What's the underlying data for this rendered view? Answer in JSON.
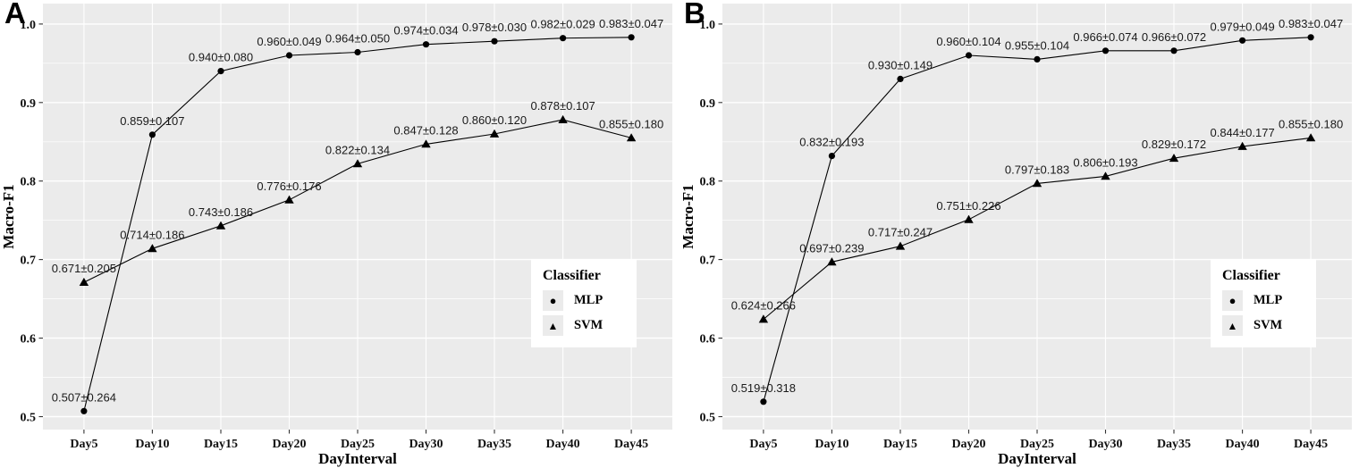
{
  "colors": {
    "panel_background": "#EBEBEB",
    "grid": "#FFFFFF",
    "series": "#000000",
    "tick": "#333333",
    "text": "#1A1A1A",
    "legend_background": "#FFFFFF",
    "legend_key_background": "#EBEBEB"
  },
  "icons": {
    "circle_marker": "●",
    "triangle_marker": "▲"
  },
  "chart_data": [
    {
      "type": "line",
      "panel_label": "A",
      "title": "",
      "xlabel": "DayInterval",
      "ylabel": "Macro-F1",
      "categories": [
        "Day5",
        "Day10",
        "Day15",
        "Day20",
        "Day25",
        "Day30",
        "Day35",
        "Day40",
        "Day45"
      ],
      "series": [
        {
          "name": "MLP",
          "marker": "circle",
          "values": [
            0.507,
            0.859,
            0.94,
            0.96,
            0.964,
            0.974,
            0.978,
            0.982,
            0.983
          ],
          "errors": [
            0.264,
            0.107,
            0.08,
            0.049,
            0.05,
            0.034,
            0.03,
            0.029,
            0.047
          ],
          "point_labels": [
            "0.507±0.264",
            "0.859±0.107",
            "0.940±0.080",
            "0.960±0.049",
            "0.964±0.050",
            "0.974±0.034",
            "0.978±0.030",
            "0.982±0.029",
            "0.983±0.047"
          ]
        },
        {
          "name": "SVM",
          "marker": "triangle",
          "values": [
            0.671,
            0.714,
            0.743,
            0.776,
            0.822,
            0.847,
            0.86,
            0.878,
            0.855
          ],
          "errors": [
            0.205,
            0.186,
            0.186,
            0.176,
            0.134,
            0.128,
            0.12,
            0.107,
            0.18
          ],
          "point_labels": [
            "0.671±0.205",
            "0.714±0.186",
            "0.743±0.186",
            "0.776±0.176",
            "0.822±0.134",
            "0.847±0.128",
            "0.860±0.120",
            "0.878±0.107",
            "0.855±0.180"
          ]
        }
      ],
      "ylim": [
        0.5,
        1.0
      ],
      "ytick_values": [
        1.0,
        0.9,
        0.8,
        0.7,
        0.6,
        0.5
      ],
      "ytick_labels": [
        "1.0",
        "0.9",
        "0.8",
        "0.7",
        "0.6",
        "0.5"
      ],
      "ytick_minor": [
        0.95,
        0.85,
        0.75,
        0.65,
        0.55
      ],
      "grid": true,
      "legend": {
        "title": "Classifier",
        "position": "right-center"
      }
    },
    {
      "type": "line",
      "panel_label": "B",
      "title": "",
      "xlabel": "DayInterval",
      "ylabel": "Macro-F1",
      "categories": [
        "Day5",
        "Day10",
        "Day15",
        "Day20",
        "Day25",
        "Day30",
        "Day35",
        "Day40",
        "Day45"
      ],
      "series": [
        {
          "name": "MLP",
          "marker": "circle",
          "values": [
            0.519,
            0.832,
            0.93,
            0.96,
            0.955,
            0.966,
            0.966,
            0.979,
            0.983
          ],
          "errors": [
            0.318,
            0.193,
            0.149,
            0.104,
            0.104,
            0.074,
            0.072,
            0.049,
            0.047
          ],
          "point_labels": [
            "0.519±0.318",
            "0.832±0.193",
            "0.930±0.149",
            "0.960±0.104",
            "0.955±0.104",
            "0.966±0.074",
            "0.966±0.072",
            "0.979±0.049",
            "0.983±0.047"
          ]
        },
        {
          "name": "SVM",
          "marker": "triangle",
          "values": [
            0.624,
            0.697,
            0.717,
            0.751,
            0.797,
            0.806,
            0.829,
            0.844,
            0.855
          ],
          "errors": [
            0.266,
            0.239,
            0.247,
            0.226,
            0.183,
            0.193,
            0.172,
            0.177,
            0.18
          ],
          "point_labels": [
            "0.624±0.266",
            "0.697±0.239",
            "0.717±0.247",
            "0.751±0.226",
            "0.797±0.183",
            "0.806±0.193",
            "0.829±0.172",
            "0.844±0.177",
            "0.855±0.180"
          ]
        }
      ],
      "ylim": [
        0.5,
        1.0
      ],
      "ytick_values": [
        1.0,
        0.9,
        0.8,
        0.7,
        0.6,
        0.5
      ],
      "ytick_labels": [
        "1.0",
        "0.9",
        "0.8",
        "0.7",
        "0.6",
        "0.5"
      ],
      "ytick_minor": [
        0.95,
        0.85,
        0.75,
        0.65,
        0.55
      ],
      "grid": true,
      "legend": {
        "title": "Classifier",
        "position": "right-center"
      }
    }
  ]
}
